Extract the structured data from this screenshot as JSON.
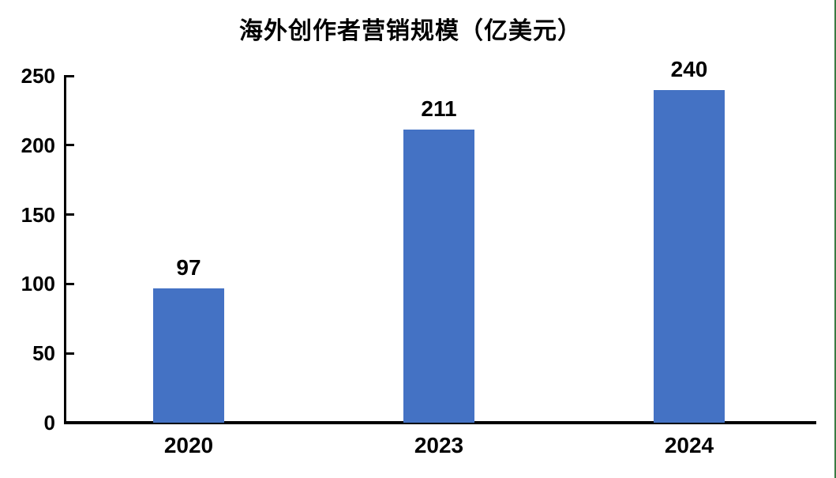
{
  "title": "海外创作者营销规模（亿美元）",
  "colors": {
    "bar": "#4472C4",
    "axis": "#000000",
    "text": "#000000",
    "background": "#FFFFFF",
    "right_border": "#3A7A42"
  },
  "chart_data": {
    "type": "bar",
    "title": "海外创作者营销规模（亿美元）",
    "categories": [
      "2020",
      "2023",
      "2024"
    ],
    "values": [
      97,
      211,
      240
    ],
    "data_labels": [
      "97",
      "211",
      "240"
    ],
    "xlabel": "",
    "ylabel": "",
    "ylim": [
      0,
      250
    ],
    "yticks": [
      0,
      50,
      100,
      150,
      200,
      250
    ],
    "grid": false,
    "legend": false,
    "bar_color": "#4472C4"
  }
}
